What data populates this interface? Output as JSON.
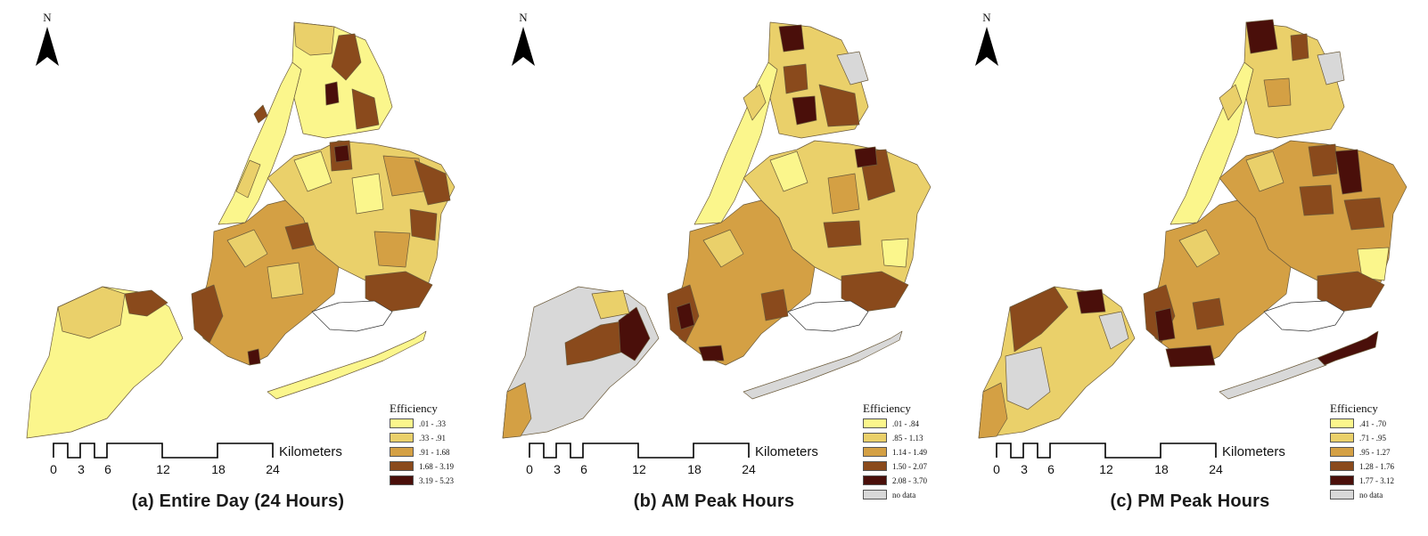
{
  "north_label": "N",
  "scale_unit": "Kilometers",
  "scale_ticks": [
    "0",
    "3",
    "6",
    "12",
    "18",
    "24"
  ],
  "legend_title": "Efficiency",
  "panels": [
    {
      "caption": "(a) Entire Day (24 Hours)",
      "legend": [
        {
          "range": ".01 - .33",
          "color": "#fbf68c"
        },
        {
          "range": ".33 - .91",
          "color": "#ead06a"
        },
        {
          "range": ".91 - 1.68",
          "color": "#d4a044"
        },
        {
          "range": "1.68 - 3.19",
          "color": "#8a4a1c"
        },
        {
          "range": "3.19 - 5.23",
          "color": "#4a0f0a"
        }
      ]
    },
    {
      "caption": "(b) AM Peak Hours",
      "legend": [
        {
          "range": ".01 - .84",
          "color": "#fbf68c"
        },
        {
          "range": ".85 - 1.13",
          "color": "#ead06a"
        },
        {
          "range": "1.14 - 1.49",
          "color": "#d4a044"
        },
        {
          "range": "1.50 - 2.07",
          "color": "#8a4a1c"
        },
        {
          "range": "2.08 - 3.70",
          "color": "#4a0f0a"
        },
        {
          "range": "no data",
          "color": "#d8d8d8"
        }
      ]
    },
    {
      "caption": "(c) PM Peak Hours",
      "legend": [
        {
          "range": ".41 - .70",
          "color": "#fbf68c"
        },
        {
          "range": ".71 - .95",
          "color": "#ead06a"
        },
        {
          "range": ".95 - 1.27",
          "color": "#d4a044"
        },
        {
          "range": "1.28 - 1.76",
          "color": "#8a4a1c"
        },
        {
          "range": "1.77 - 3.12",
          "color": "#4a0f0a"
        },
        {
          "range": "no data",
          "color": "#d8d8d8"
        }
      ]
    }
  ]
}
